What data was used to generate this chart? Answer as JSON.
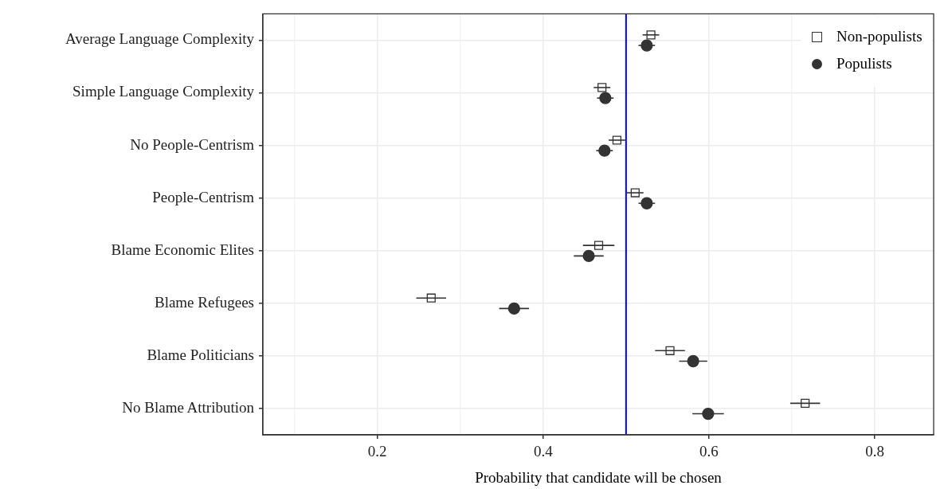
{
  "chart_data": {
    "type": "scatter",
    "orientation": "horizontal",
    "xlabel": "Probability that candidate will be chosen",
    "categories": [
      "Average Language Complexity",
      "Simple Language Complexity",
      "No People-Centrism",
      "People-Centrism",
      "Blame Economic Elites",
      "Blame Refugees",
      "Blame Politicians",
      "No Blame Attribution"
    ],
    "series": [
      {
        "name": "Non-populists",
        "color": "#333333",
        "marker": "square",
        "values": [
          0.53,
          0.471,
          0.489,
          0.511,
          0.467,
          0.265,
          0.553,
          0.716
        ],
        "errors": [
          0.01,
          0.01,
          0.01,
          0.01,
          0.019,
          0.018,
          0.018,
          0.018
        ]
      },
      {
        "name": "Populists",
        "color": "#333333",
        "marker": "circle",
        "values": [
          0.525,
          0.475,
          0.474,
          0.525,
          0.455,
          0.365,
          0.581,
          0.599
        ],
        "errors": [
          0.01,
          0.01,
          0.01,
          0.01,
          0.018,
          0.018,
          0.017,
          0.019
        ]
      }
    ],
    "xlim": [
      0.062,
      0.871
    ],
    "xticks": [
      {
        "value": 0.1,
        "label": null
      },
      0.2,
      {
        "value": 0.3,
        "label": null
      },
      0.4,
      {
        "value": 0.5,
        "label": null
      },
      0.6,
      {
        "value": 0.7,
        "label": null
      },
      0.8
    ],
    "ref_lines": [
      {
        "axis": "x",
        "value": 0.5,
        "color": "#0000ff"
      }
    ],
    "grid": true,
    "legend": "top right"
  }
}
